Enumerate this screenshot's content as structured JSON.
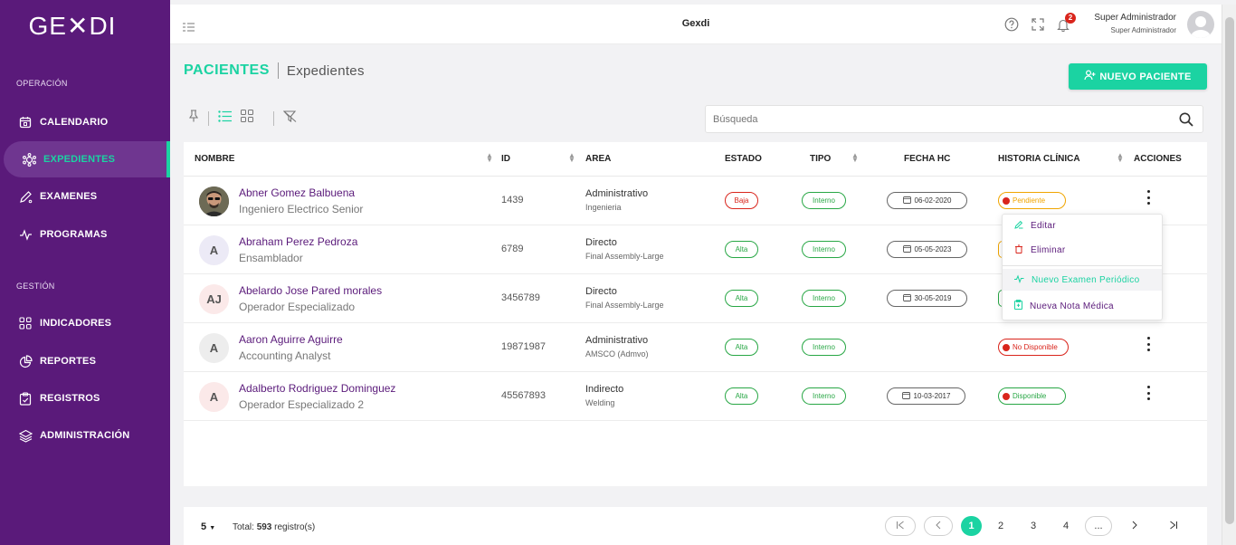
{
  "sidebar": {
    "logo": "GE✕DI",
    "section_operacion": "OPERACIÓN",
    "section_gestion": "GESTIÓN",
    "items": [
      {
        "label": "CALENDARIO",
        "icon": "calendar-icon"
      },
      {
        "label": "EXPEDIENTES",
        "icon": "dna-icon",
        "active": true
      },
      {
        "label": "EXAMENES",
        "icon": "pencil-icon"
      },
      {
        "label": "PROGRAMAS",
        "icon": "pulse-icon"
      },
      {
        "label": "INDICADORES",
        "icon": "grid-icon"
      },
      {
        "label": "REPORTES",
        "icon": "pie-chart-icon"
      },
      {
        "label": "REGISTROS",
        "icon": "clipboard-icon"
      },
      {
        "label": "ADMINISTRACIÓN",
        "icon": "layers-icon"
      }
    ]
  },
  "topbar": {
    "title": "Gexdi",
    "notifications": "2",
    "user_name": "Super Administrador",
    "user_role": "Super Administrador"
  },
  "page": {
    "title": "PACIENTES",
    "subtitle": "Expedientes",
    "new_button": "NUEVO PACIENTE",
    "search_placeholder": "Búsqueda"
  },
  "table": {
    "headers": [
      "NOMBRE",
      "ID",
      "AREA",
      "ESTADO",
      "TIPO",
      "FECHA HC",
      "HISTORIA CLÍNICA",
      "ACCIONES"
    ],
    "rows": [
      {
        "initials": "",
        "name": "Abner Gomez Balbuena",
        "job": "Ingeniero Electrico Senior",
        "id": "1439",
        "area": "Administrativo",
        "subarea": "Ingenieria",
        "estado": "Baja",
        "tipo": "Interno",
        "fecha": "06-02-2020",
        "hc": "Pendiente"
      },
      {
        "initials": "A",
        "name": "Abraham Perez Pedroza",
        "job": "Ensamblador",
        "id": "6789",
        "area": "Directo",
        "subarea": "Final Assembly-Large",
        "estado": "Alta",
        "tipo": "Interno",
        "fecha": "05-05-2023",
        "hc": ""
      },
      {
        "initials": "AJ",
        "name": "Abelardo Jose Pared morales",
        "job": "Operador Especializado",
        "id": "3456789",
        "area": "Directo",
        "subarea": "Final Assembly-Large",
        "estado": "Alta",
        "tipo": "Interno",
        "fecha": "30-05-2019",
        "hc": ""
      },
      {
        "initials": "A",
        "name": "Aaron Aguirre Aguirre",
        "job": "Accounting Analyst",
        "id": "19871987",
        "area": "Administrativo",
        "subarea": "AMSCO (Admvo)",
        "estado": "Alta",
        "tipo": "Interno",
        "fecha": "",
        "hc": "No Disponible"
      },
      {
        "initials": "A",
        "name": "Adalberto Rodriguez Dominguez",
        "job": "Operador Especializado 2",
        "id": "45567893",
        "area": "Indirecto",
        "subarea": "Welding",
        "estado": "Alta",
        "tipo": "Interno",
        "fecha": "10-03-2017",
        "hc": "Disponible"
      }
    ]
  },
  "dropdown": {
    "items": [
      "Editar",
      "Eliminar",
      "Nuevo Examen Periódico",
      "Nueva Nota Médica"
    ]
  },
  "footer": {
    "per_page": "5",
    "total_prefix": "Total:",
    "total_count": "593",
    "total_suffix": "registro(s)",
    "pages": [
      "1",
      "2",
      "3",
      "4",
      "..."
    ]
  },
  "colors": {
    "sidebar": "#5a1a7a",
    "accent": "#1bd3a2",
    "danger": "#d9251c",
    "success": "#28a745",
    "warning": "#f0a500"
  }
}
